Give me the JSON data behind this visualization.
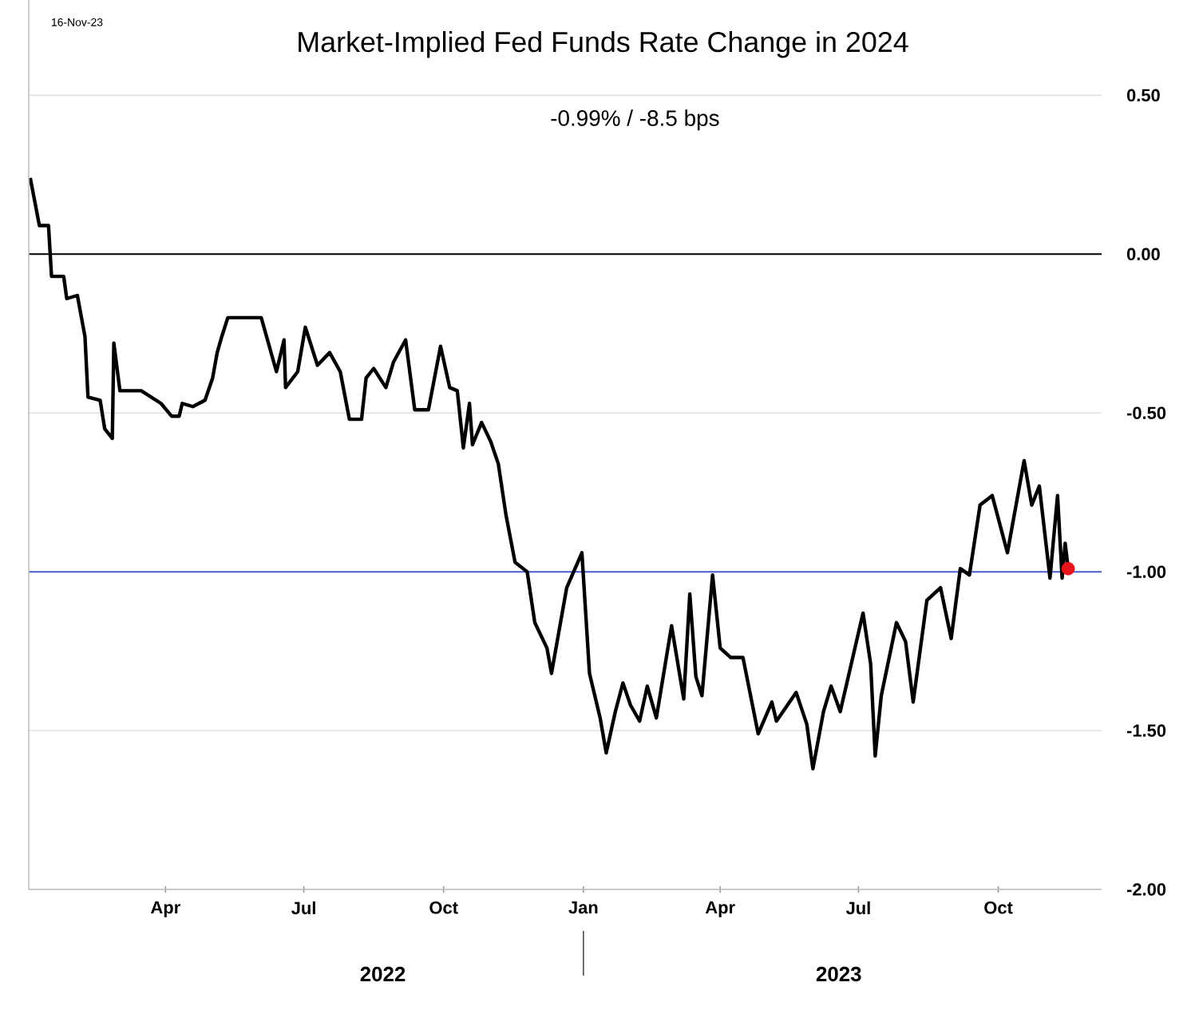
{
  "chart_data": {
    "type": "line",
    "title": "Market-Implied Fed Funds Rate Change in 2024",
    "subtitle": "-0.99%  /  -8.5 bps",
    "annotations": [
      "16-Nov-23",
      "2022",
      "2023"
    ],
    "xlim": [
      "2022-01-01",
      "2023-12-08"
    ],
    "xticks": [
      {
        "value": "2022-04-01",
        "label": "Apr"
      },
      {
        "value": "2022-07-01",
        "label": "Jul"
      },
      {
        "value": "2022-10-01",
        "label": "Oct"
      },
      {
        "value": "2023-01-01",
        "label": "Jan"
      },
      {
        "value": "2023-04-01",
        "label": "Apr"
      },
      {
        "value": "2023-07-01",
        "label": "Jul"
      },
      {
        "value": "2023-10-01",
        "label": "Oct"
      }
    ],
    "ylim": [
      -2.0,
      0.8
    ],
    "yticks": [
      {
        "value": 0.5,
        "label": "0.50"
      },
      {
        "value": 0.0,
        "label": "0.00"
      },
      {
        "value": -0.5,
        "label": "-0.50"
      },
      {
        "value": -1.0,
        "label": "-1.00"
      },
      {
        "value": -1.5,
        "label": "-1.50"
      },
      {
        "value": -2.0,
        "label": "-2.00"
      }
    ],
    "grid": "y",
    "ref_lines": [
      {
        "axis": "y",
        "value": 0.0,
        "color": "#000000"
      },
      {
        "axis": "y",
        "value": -1.0,
        "color": "#4a5fd6"
      }
    ],
    "series": [
      {
        "type": "line",
        "color": "#000000",
        "x": [
          "2022-01-02",
          "2022-01-08",
          "2022-01-14",
          "2022-01-16",
          "2022-01-24",
          "2022-01-26",
          "2022-02-02",
          "2022-02-07",
          "2022-02-09",
          "2022-02-17",
          "2022-02-20",
          "2022-02-25",
          "2022-02-26",
          "2022-03-02",
          "2022-03-16",
          "2022-03-29",
          "2022-04-05",
          "2022-04-10",
          "2022-04-12",
          "2022-04-19",
          "2022-04-27",
          "2022-05-02",
          "2022-05-05",
          "2022-05-08",
          "2022-05-12",
          "2022-06-03",
          "2022-06-13",
          "2022-06-18",
          "2022-06-19",
          "2022-06-27",
          "2022-07-02",
          "2022-07-10",
          "2022-07-18",
          "2022-07-25",
          "2022-07-31",
          "2022-08-08",
          "2022-08-11",
          "2022-08-16",
          "2022-08-24",
          "2022-08-29",
          "2022-09-06",
          "2022-09-12",
          "2022-09-21",
          "2022-09-29",
          "2022-10-05",
          "2022-10-10",
          "2022-10-14",
          "2022-10-18",
          "2022-10-20",
          "2022-10-26",
          "2022-11-01",
          "2022-11-06",
          "2022-11-11",
          "2022-11-17",
          "2022-11-25",
          "2022-11-30",
          "2022-12-08",
          "2022-12-11",
          "2022-12-21",
          "2022-12-31",
          "2023-01-05",
          "2023-01-12",
          "2023-01-16",
          "2023-01-22",
          "2023-01-27",
          "2023-02-01",
          "2023-02-07",
          "2023-02-12",
          "2023-02-18",
          "2023-02-28",
          "2023-03-08",
          "2023-03-12",
          "2023-03-16",
          "2023-03-20",
          "2023-03-27",
          "2023-04-01",
          "2023-04-08",
          "2023-04-16",
          "2023-04-26",
          "2023-05-05",
          "2023-05-08",
          "2023-05-21",
          "2023-05-28",
          "2023-06-01",
          "2023-06-08",
          "2023-06-13",
          "2023-06-19",
          "2023-07-04",
          "2023-07-09",
          "2023-07-12",
          "2023-07-16",
          "2023-07-26",
          "2023-08-01",
          "2023-08-06",
          "2023-08-15",
          "2023-08-24",
          "2023-08-31",
          "2023-09-06",
          "2023-09-12",
          "2023-09-19",
          "2023-09-27",
          "2023-10-07",
          "2023-10-18",
          "2023-10-23",
          "2023-10-28",
          "2023-11-04",
          "2023-11-09",
          "2023-11-12",
          "2023-11-14",
          "2023-11-16"
        ],
        "values": [
          0.24,
          0.09,
          0.09,
          -0.07,
          -0.07,
          -0.14,
          -0.13,
          -0.26,
          -0.45,
          -0.46,
          -0.55,
          -0.58,
          -0.28,
          -0.43,
          -0.43,
          -0.47,
          -0.51,
          -0.51,
          -0.47,
          -0.48,
          -0.46,
          -0.39,
          -0.31,
          -0.26,
          -0.2,
          -0.2,
          -0.37,
          -0.27,
          -0.42,
          -0.37,
          -0.23,
          -0.35,
          -0.31,
          -0.37,
          -0.52,
          -0.52,
          -0.39,
          -0.36,
          -0.42,
          -0.34,
          -0.27,
          -0.49,
          -0.49,
          -0.29,
          -0.42,
          -0.43,
          -0.61,
          -0.47,
          -0.6,
          -0.53,
          -0.59,
          -0.66,
          -0.82,
          -0.97,
          -1.0,
          -1.16,
          -1.24,
          -1.32,
          -1.05,
          -0.94,
          -1.32,
          -1.46,
          -1.57,
          -1.44,
          -1.35,
          -1.42,
          -1.47,
          -1.36,
          -1.46,
          -1.17,
          -1.4,
          -1.07,
          -1.33,
          -1.39,
          -1.01,
          -1.24,
          -1.27,
          -1.27,
          -1.51,
          -1.41,
          -1.47,
          -1.38,
          -1.48,
          -1.62,
          -1.44,
          -1.36,
          -1.44,
          -1.13,
          -1.29,
          -1.58,
          -1.39,
          -1.16,
          -1.22,
          -1.41,
          -1.09,
          -1.05,
          -1.21,
          -0.99,
          -1.01,
          -0.79,
          -0.76,
          -0.94,
          -0.65,
          -0.79,
          -0.73,
          -1.02,
          -0.76,
          -1.02,
          -0.91,
          -0.99
        ]
      },
      {
        "type": "scatter",
        "color": "#e8141c",
        "marker": "circle",
        "x": [
          "2023-11-16"
        ],
        "values": [
          -0.99
        ]
      }
    ]
  }
}
